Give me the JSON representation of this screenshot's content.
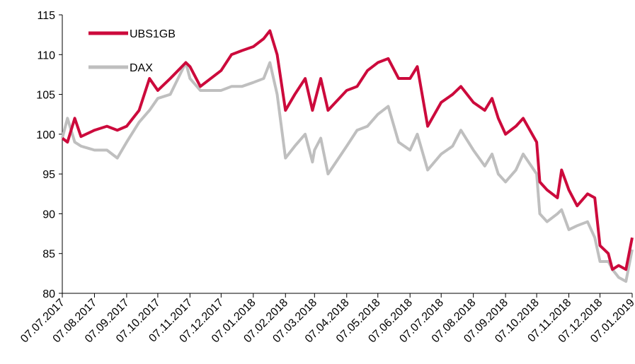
{
  "chart_data": {
    "type": "line",
    "x": [
      "07.07.2017",
      "12.07.2017",
      "19.07.2017",
      "25.07.2017",
      "07.08.2017",
      "19.08.2017",
      "29.08.2017",
      "07.09.2017",
      "19.09.2017",
      "29.09.2017",
      "07.10.2017",
      "19.10.2017",
      "03.11.2017",
      "07.11.2017",
      "17.11.2017",
      "07.12.2017",
      "17.12.2017",
      "27.12.2017",
      "07.01.2018",
      "17.01.2018",
      "23.01.2018",
      "30.01.2018",
      "07.02.2018",
      "16.02.2018",
      "26.02.2018",
      "05.03.2018",
      "07.03.2018",
      "13.03.2018",
      "20.03.2018",
      "07.04.2018",
      "17.04.2018",
      "27.04.2018",
      "07.05.2018",
      "17.05.2018",
      "27.05.2018",
      "07.06.2018",
      "14.06.2018",
      "24.06.2018",
      "07.07.2018",
      "18.07.2018",
      "26.07.2018",
      "07.08.2018",
      "18.08.2018",
      "25.08.2018",
      "31.08.2018",
      "07.09.2018",
      "17.09.2018",
      "24.09.2018",
      "07.10.2018",
      "10.10.2018",
      "17.10.2018",
      "27.10.2018",
      "31.10.2018",
      "07.11.2018",
      "15.11.2018",
      "25.11.2018",
      "02.12.2018",
      "07.12.2018",
      "15.12.2018",
      "19.12.2018",
      "25.12.2018",
      "01.01.2019",
      "07.01.2019"
    ],
    "series": [
      {
        "name": "UBS1GB",
        "color": "#cc0a3c",
        "values": [
          99.5,
          99,
          102,
          99.7,
          100.5,
          101,
          100.5,
          101,
          103,
          107,
          105.5,
          107,
          109,
          108.5,
          106,
          108,
          110,
          110.5,
          111,
          112,
          113,
          110,
          103,
          105,
          107,
          103,
          104,
          107,
          103,
          105.5,
          106,
          108,
          109,
          109.5,
          107,
          107,
          108.5,
          101,
          104,
          105,
          106,
          104,
          103,
          104.5,
          102,
          100,
          101,
          102,
          99,
          94,
          93,
          92,
          95.5,
          93,
          91,
          92.5,
          92,
          86,
          85,
          83,
          83.5,
          83,
          87
        ]
      },
      {
        "name": "DAX",
        "color": "#bfbfbf",
        "values": [
          99.5,
          102,
          99,
          98.5,
          98,
          98,
          97,
          99,
          101.5,
          103,
          104.5,
          105,
          109,
          107,
          105.5,
          105.5,
          106,
          106,
          106.5,
          107,
          109,
          105,
          97,
          98.5,
          100,
          96.5,
          98,
          99.5,
          95,
          98.5,
          100.5,
          101,
          102.5,
          103.5,
          99,
          98,
          100,
          95.5,
          97.5,
          98.5,
          100.5,
          98,
          96,
          97.5,
          95,
          94,
          95.5,
          97.5,
          95,
          90,
          89,
          90,
          90.5,
          88,
          88.5,
          89,
          87,
          84,
          84,
          83,
          82,
          81.5,
          85.5
        ]
      }
    ],
    "xlim": [
      "07.07.2017",
      "07.01.2019"
    ],
    "xticks": [
      "07.07.2017",
      "07.08.2017",
      "07.09.2017",
      "07.10.2017",
      "07.11.2017",
      "07.12.2017",
      "07.01.2018",
      "07.02.2018",
      "07.03.2018",
      "07.04.2018",
      "07.05.2018",
      "07.06.2018",
      "07.07.2018",
      "07.08.2018",
      "07.09.2018",
      "07.10.2018",
      "07.11.2018",
      "07.12.2018",
      "07.01.2019"
    ],
    "ylim": [
      80,
      115
    ],
    "yticks": [
      80,
      85,
      90,
      95,
      100,
      105,
      110,
      115
    ],
    "grid": false,
    "legend": "top-left"
  }
}
